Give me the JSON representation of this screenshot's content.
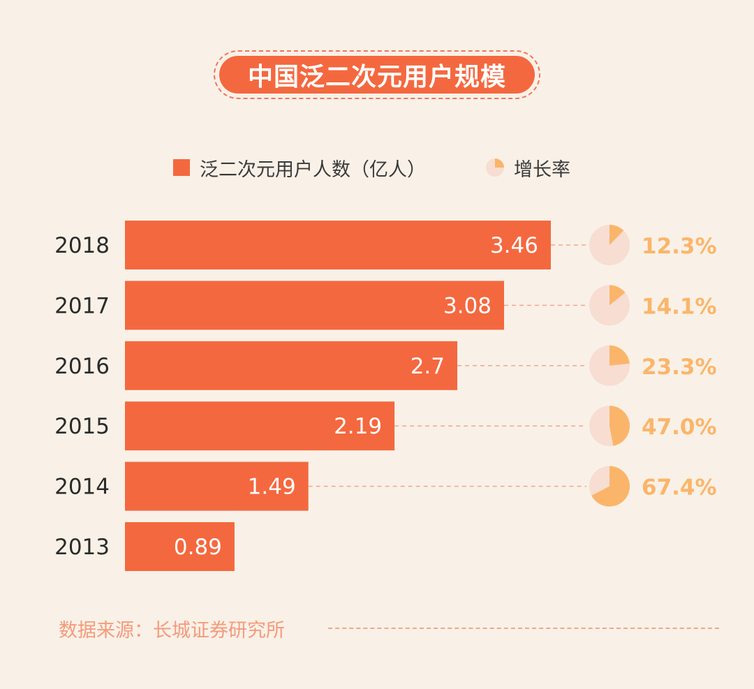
{
  "title": "中国泛二次元用户规模",
  "legend": {
    "bar_label": "泛二次元用户人数（亿人）",
    "growth_label": "增长率"
  },
  "source": "数据来源：长城证券研究所",
  "colors": {
    "bar": "#f4683f",
    "growth_slice": "#fbb56a",
    "pie_bg": "#f7ddd2",
    "growth_text": "#fbb56a",
    "dash": "#f4a58a"
  },
  "chart_data": {
    "type": "bar",
    "orientation": "horizontal",
    "categories": [
      "2018",
      "2017",
      "2016",
      "2015",
      "2014",
      "2013"
    ],
    "series": [
      {
        "name": "泛二次元用户人数（亿人）",
        "values": [
          3.46,
          3.08,
          2.7,
          2.19,
          1.49,
          0.89
        ],
        "labels": [
          "3.46",
          "3.08",
          "2.7",
          "2.19",
          "1.49",
          "0.89"
        ]
      },
      {
        "name": "增长率",
        "values": [
          12.3,
          14.1,
          23.3,
          47.0,
          67.4,
          null
        ],
        "labels": [
          "12.3%",
          "14.1%",
          "23.3%",
          "47.0%",
          "67.4%",
          ""
        ]
      }
    ]
  }
}
